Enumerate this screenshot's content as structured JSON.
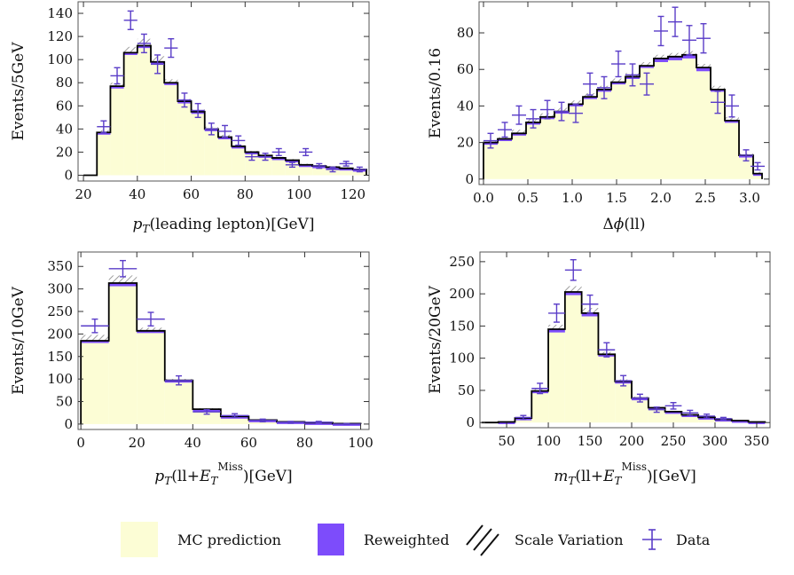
{
  "colors": {
    "mc_fill": "#fcfdd5",
    "reweighted": "#7d4cfb",
    "data": "#5a3dc8",
    "hatch": "#888888",
    "line": "#000000"
  },
  "legend": {
    "mc": "MC prediction",
    "reweighted": "Reweighted",
    "scale": "Scale Variation",
    "data": "Data"
  },
  "chart_data": [
    {
      "type": "histogram",
      "ylabel": "Events/5GeV",
      "xlabel_parts": [
        [
          "p",
          "italic"
        ],
        [
          "T",
          "sub-italic"
        ],
        [
          "(leading lepton)[GeV]",
          "normal"
        ]
      ],
      "xlim": [
        18,
        126
      ],
      "ylim": [
        -5,
        150
      ],
      "xticks": [
        20,
        40,
        60,
        80,
        100,
        120
      ],
      "yticks": [
        0,
        20,
        40,
        60,
        80,
        100,
        120,
        140
      ],
      "edges": [
        20,
        25,
        30,
        35,
        40,
        45,
        50,
        55,
        60,
        65,
        70,
        75,
        80,
        85,
        90,
        95,
        100,
        105,
        110,
        115,
        120,
        125
      ],
      "mc": [
        0,
        37,
        77,
        106,
        112,
        98,
        80,
        64,
        55,
        40,
        33,
        25,
        20,
        17,
        15,
        13,
        9,
        8,
        7,
        6,
        5
      ],
      "reweighted": [
        0,
        36,
        75,
        104,
        110,
        96,
        78,
        63,
        54,
        39,
        32,
        24,
        19,
        16,
        14,
        12,
        9,
        8,
        7,
        6,
        4
      ],
      "scale": [
        0,
        39,
        80,
        111,
        118,
        103,
        83,
        66,
        57,
        42,
        35,
        26,
        21,
        18,
        16,
        14,
        10,
        9,
        8,
        7,
        5
      ],
      "data_x": [
        32.5,
        37.5,
        42.5,
        47.5,
        52.5,
        57.5,
        62.5,
        67.5,
        72.5,
        77.5,
        82.5,
        87.5,
        92.5,
        97.5,
        102.5,
        107.5,
        112.5,
        117.5,
        122.5
      ],
      "data_y": [
        86,
        134,
        114,
        96,
        110,
        65,
        56,
        40,
        38,
        30,
        16,
        16,
        20,
        9,
        20,
        8,
        5,
        10,
        5
      ],
      "data_err": [
        7,
        8,
        8,
        8,
        8,
        6,
        6,
        5,
        5,
        4,
        3,
        3,
        3,
        2,
        3,
        2,
        2,
        2,
        2
      ],
      "data_first_x": 27.5,
      "data_first_y": 42,
      "data_first_err": 5
    },
    {
      "type": "histogram",
      "ylabel": "Events/0.16",
      "xlabel_parts": [
        [
          "Δ",
          "normal"
        ],
        [
          "ϕ",
          "italic"
        ],
        [
          "(ll)",
          "normal"
        ]
      ],
      "xlim": [
        -0.05,
        3.22
      ],
      "ylim": [
        -3,
        97
      ],
      "xticks": [
        0.0,
        0.5,
        1.0,
        1.5,
        2.0,
        2.5,
        3.0
      ],
      "ytick_labels": [
        "0",
        "20",
        "40",
        "60",
        "80"
      ],
      "yticks": [
        0,
        20,
        40,
        60,
        80
      ],
      "edges": [
        0,
        0.16,
        0.32,
        0.48,
        0.64,
        0.8,
        0.96,
        1.12,
        1.28,
        1.44,
        1.6,
        1.76,
        1.92,
        2.08,
        2.24,
        2.4,
        2.56,
        2.72,
        2.88,
        3.04,
        3.14
      ],
      "mc": [
        20,
        22,
        25,
        31,
        34,
        37,
        41,
        45,
        49,
        53,
        56,
        62,
        66,
        67,
        68,
        61,
        49,
        32,
        13,
        3
      ],
      "reweighted": [
        19,
        21,
        24,
        30,
        33,
        36,
        40,
        44,
        48,
        52,
        55,
        61,
        64,
        65,
        66,
        59,
        48,
        31,
        13,
        3
      ],
      "scale": [
        21,
        23,
        27,
        33,
        36,
        39,
        43,
        47,
        51,
        55,
        58,
        64,
        68,
        69,
        70,
        63,
        51,
        34,
        14,
        4
      ],
      "data_x": [
        0.08,
        0.24,
        0.4,
        0.56,
        0.72,
        0.88,
        1.04,
        1.2,
        1.36,
        1.52,
        1.68,
        1.84,
        2.0,
        2.16,
        2.32,
        2.48,
        2.64,
        2.8,
        2.96,
        3.09
      ],
      "data_y": [
        21,
        27,
        35,
        33,
        38,
        37,
        36,
        52,
        50,
        63,
        57,
        52,
        81,
        86,
        76,
        77,
        42,
        40,
        13,
        7
      ],
      "data_err": [
        4,
        4,
        5,
        5,
        5,
        5,
        5,
        6,
        6,
        7,
        6,
        6,
        8,
        8,
        8,
        8,
        6,
        6,
        3,
        2
      ]
    },
    {
      "type": "histogram",
      "ylabel": "Events/10GeV",
      "xlabel_parts": [
        [
          "p",
          "italic"
        ],
        [
          "T",
          "sub-italic"
        ],
        [
          "(ll+",
          "normal"
        ],
        [
          "E",
          "italic"
        ],
        [
          "T",
          "sub-italic"
        ],
        [
          "Miss",
          "sup"
        ],
        [
          ")[GeV]",
          "normal"
        ]
      ],
      "xlim": [
        -1,
        103
      ],
      "ylim": [
        -12,
        382
      ],
      "xticks": [
        0,
        20,
        40,
        60,
        80,
        100
      ],
      "yticks": [
        0,
        50,
        100,
        150,
        200,
        250,
        300,
        350
      ],
      "edges": [
        0,
        10,
        20,
        30,
        40,
        50,
        60,
        70,
        80,
        90,
        100
      ],
      "mc": [
        185,
        313,
        207,
        97,
        33,
        17,
        9,
        5,
        3,
        1
      ],
      "reweighted": [
        180,
        306,
        203,
        94,
        31,
        16,
        8,
        4,
        2,
        1
      ],
      "scale": [
        198,
        330,
        214,
        100,
        35,
        18,
        9,
        5,
        3,
        1
      ],
      "data_x": [
        5,
        15,
        25,
        35,
        45,
        55,
        65,
        75,
        85,
        95
      ],
      "data_y": [
        218,
        345,
        233,
        97,
        27,
        19,
        8,
        4,
        4,
        0
      ],
      "data_err": [
        15,
        18,
        15,
        10,
        5,
        4,
        3,
        2,
        2,
        1
      ]
    },
    {
      "type": "histogram",
      "ylabel": "Events/20GeV",
      "xlabel_parts": [
        [
          "m",
          "italic"
        ],
        [
          "T",
          "sub-italic"
        ],
        [
          "(ll+",
          "normal"
        ],
        [
          "E",
          "italic"
        ],
        [
          "T",
          "sub-italic"
        ],
        [
          "Miss",
          "sup"
        ],
        [
          ")[GeV]",
          "normal"
        ]
      ],
      "xlim": [
        18,
        366
      ],
      "ylim": [
        -8,
        265
      ],
      "xticks": [
        50,
        100,
        150,
        200,
        250,
        300,
        350
      ],
      "yticks": [
        0,
        50,
        100,
        150,
        200,
        250
      ],
      "edges": [
        20,
        40,
        60,
        80,
        100,
        120,
        140,
        160,
        180,
        200,
        220,
        240,
        260,
        280,
        300,
        320,
        340,
        360
      ],
      "mc": [
        0,
        1,
        7,
        49,
        145,
        203,
        170,
        106,
        64,
        38,
        23,
        17,
        12,
        8,
        5,
        3,
        1
      ],
      "reweighted": [
        0,
        1,
        6,
        46,
        140,
        198,
        165,
        103,
        62,
        36,
        22,
        16,
        11,
        7,
        5,
        3,
        1
      ],
      "scale": [
        0,
        1,
        8,
        53,
        152,
        212,
        178,
        110,
        67,
        40,
        24,
        18,
        13,
        8,
        5,
        3,
        1
      ],
      "data_x": [
        70,
        90,
        110,
        130,
        150,
        170,
        190,
        210,
        230,
        250,
        270,
        290,
        310
      ],
      "data_y": [
        8,
        53,
        170,
        237,
        184,
        113,
        65,
        38,
        20,
        26,
        15,
        10,
        6
      ],
      "data_err": [
        3,
        8,
        14,
        16,
        14,
        11,
        8,
        6,
        4,
        5,
        4,
        3,
        2
      ]
    }
  ]
}
